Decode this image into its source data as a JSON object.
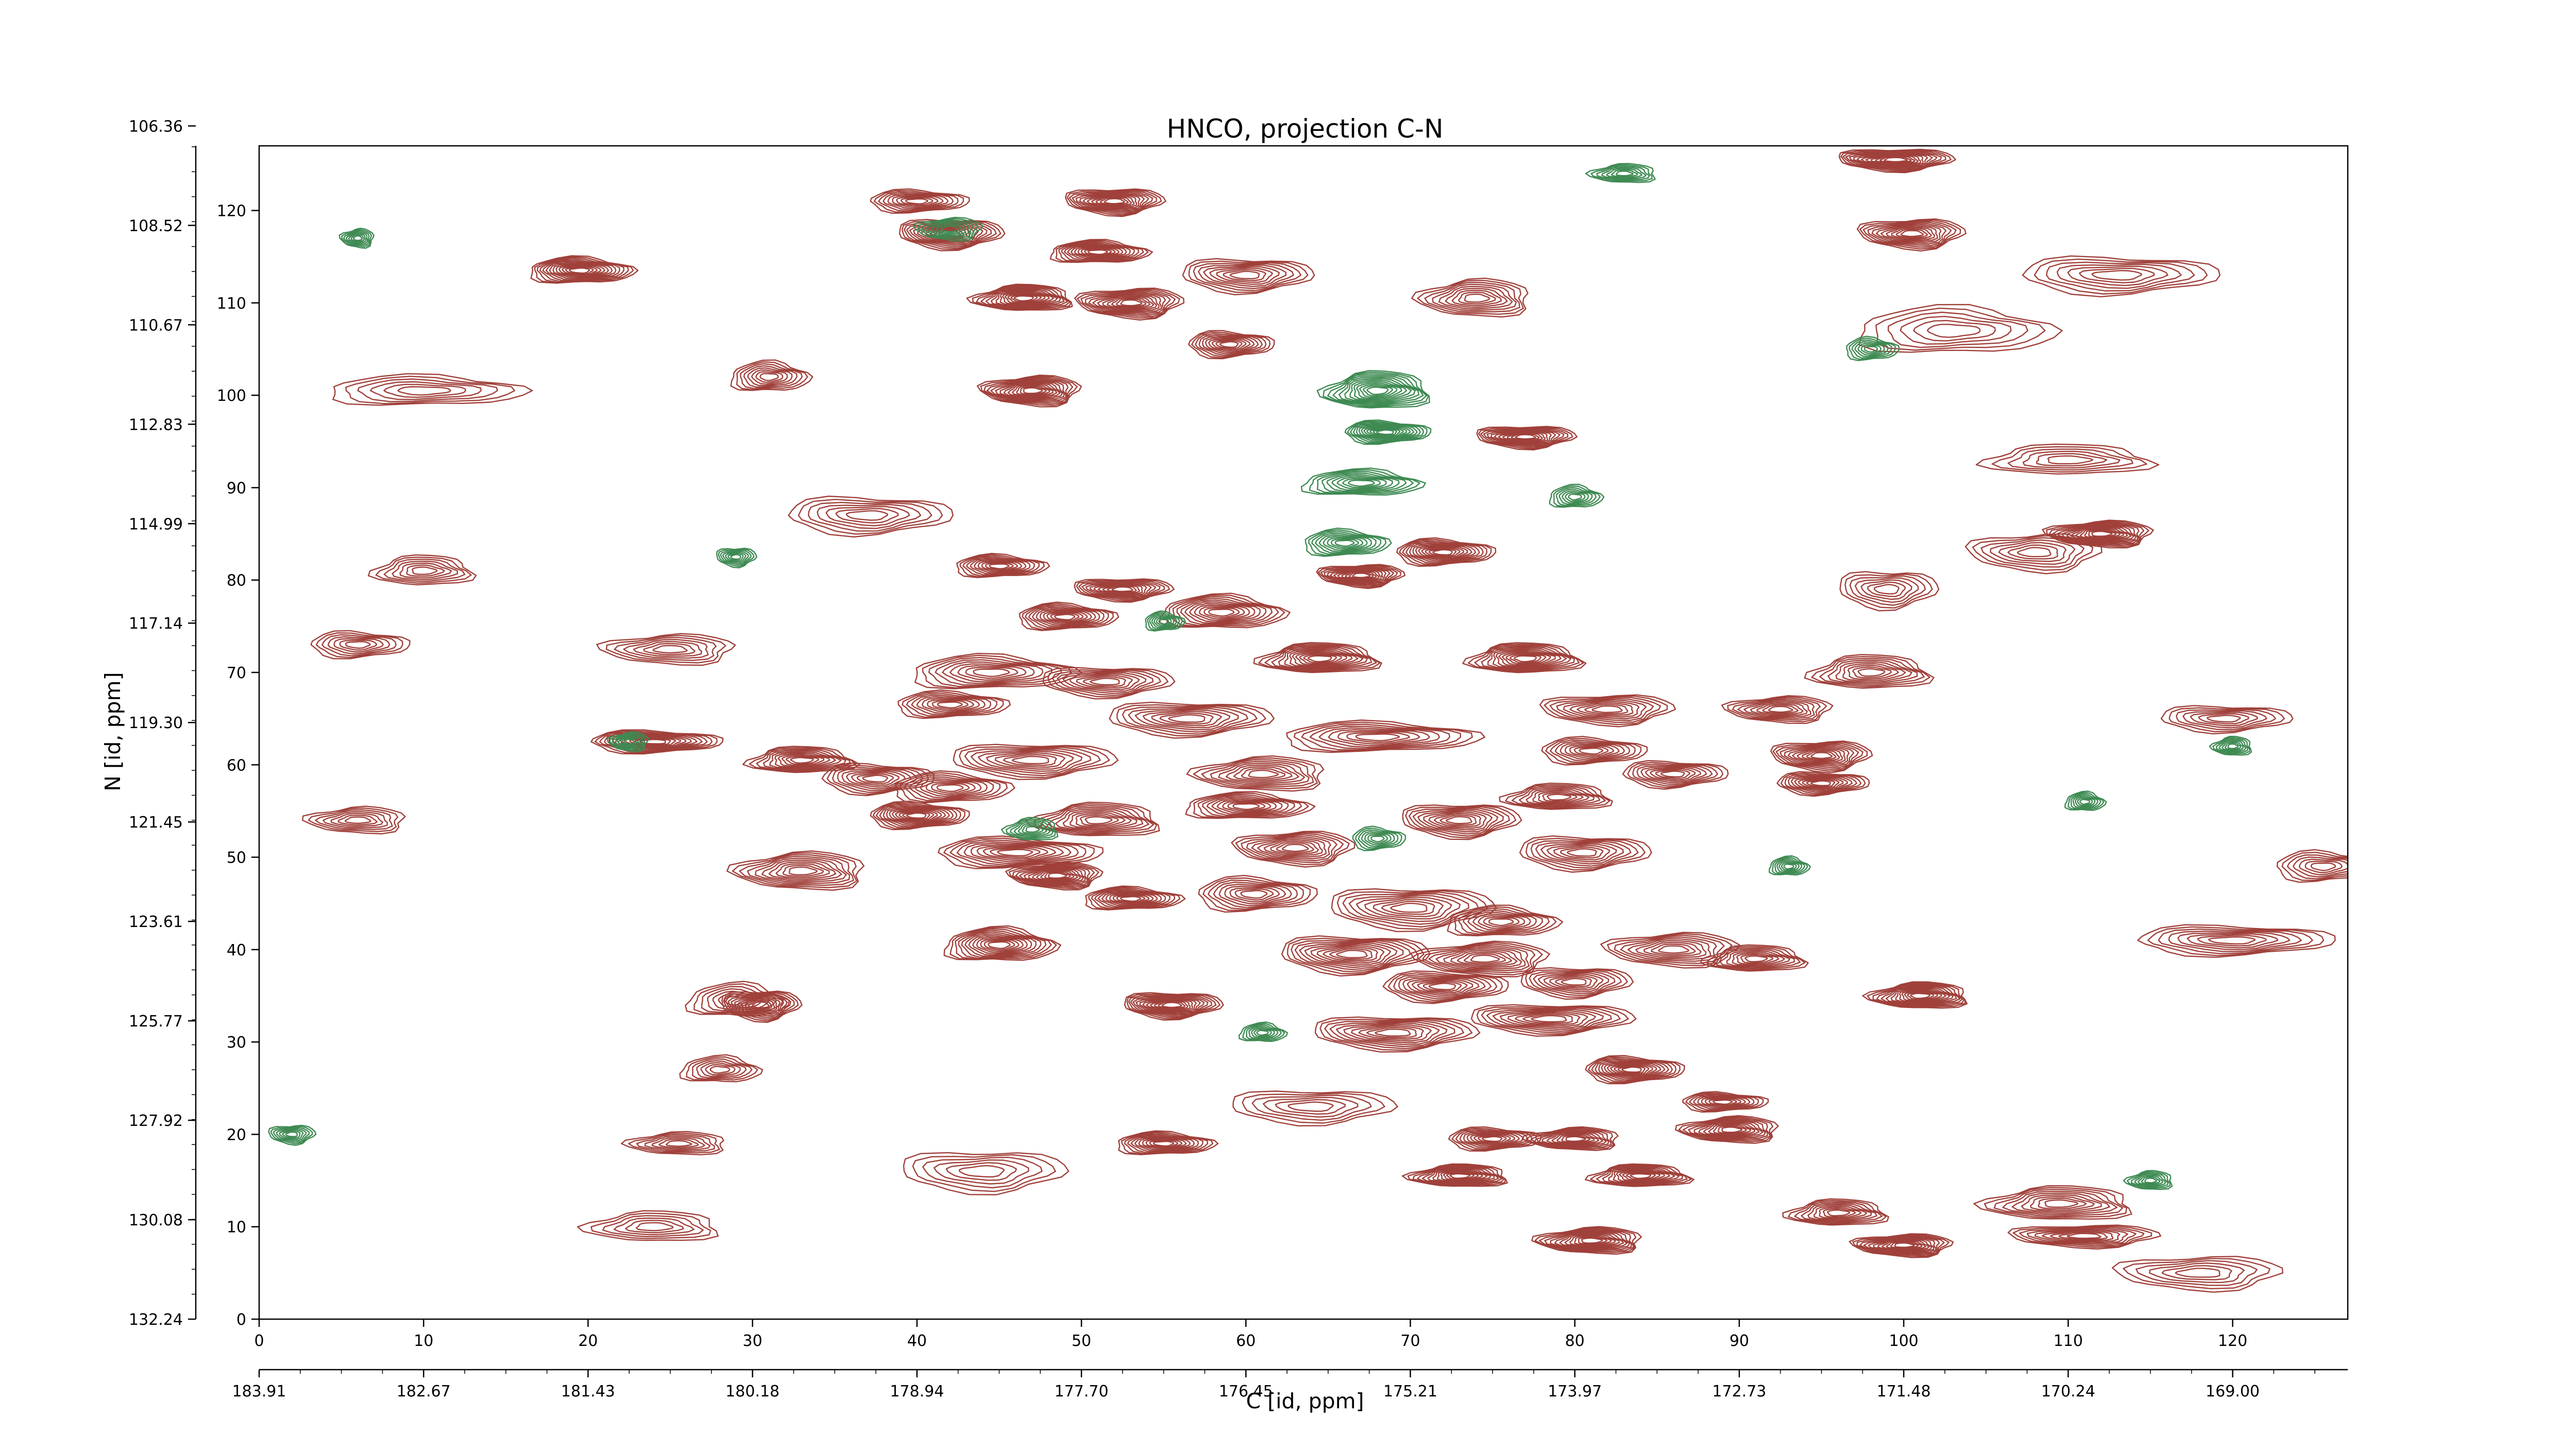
{
  "chart_data": {
    "type": "contour",
    "title": "HNCO, projection C-N",
    "xlabel": "C [id, ppm]",
    "ylabel": "N [id, ppm]",
    "xlim": [
      0,
      127
    ],
    "ylim": [
      0,
      127
    ],
    "grid": false,
    "legend": "none",
    "colors": {
      "positive": "#a0403a",
      "negative": "#3e8a52"
    },
    "x_ticks": [
      0,
      10,
      20,
      30,
      40,
      50,
      60,
      70,
      80,
      90,
      100,
      110,
      120
    ],
    "x_tick_labels": [
      "0",
      "10",
      "20",
      "30",
      "40",
      "50",
      "60",
      "70",
      "80",
      "90",
      "100",
      "110",
      "120"
    ],
    "y_ticks": [
      0,
      10,
      20,
      30,
      40,
      50,
      60,
      70,
      80,
      90,
      100,
      110,
      120
    ],
    "y_tick_labels": [
      "0",
      "10",
      "20",
      "30",
      "40",
      "50",
      "60",
      "70",
      "80",
      "90",
      "100",
      "110",
      "120"
    ],
    "ppm_x_ticks": [
      0,
      10,
      20,
      30,
      40,
      50,
      60,
      70,
      80,
      90,
      100,
      110,
      120
    ],
    "ppm_x_labels": [
      "183.91",
      "182.67",
      "181.43",
      "180.18",
      "178.94",
      "177.70",
      "176.45",
      "175.21",
      "173.97",
      "172.73",
      "171.48",
      "170.24",
      "169.00"
    ],
    "ppm_y_ticks": [
      0,
      12.7,
      25.4,
      38.1,
      50.8,
      63.5,
      76.2,
      88.9,
      101.6,
      114.3,
      127
    ],
    "ppm_y_labels": [
      "132.24",
      "130.08",
      "127.92",
      "125.77",
      "123.61",
      "121.45",
      "119.30",
      "117.14",
      "114.99",
      "112.83",
      "110.67"
    ],
    "ppm_y_labels_top": [
      "108.52",
      "106.36"
    ],
    "peaks": [
      {
        "x": 99.5,
        "y": 125.5,
        "w": 3.5,
        "h": 1.2,
        "s": 2.4
      },
      {
        "x": 100.5,
        "y": 117.5,
        "w": 3.2,
        "h": 1.6,
        "s": 2.0
      },
      {
        "x": 19.5,
        "y": 113.5,
        "w": 3.2,
        "h": 1.4,
        "s": 2.4
      },
      {
        "x": 40.0,
        "y": 121.0,
        "w": 3.0,
        "h": 1.2,
        "s": 1.6
      },
      {
        "x": 42.0,
        "y": 117.5,
        "w": 3.2,
        "h": 1.6,
        "s": 2.2
      },
      {
        "x": 52.0,
        "y": 121.0,
        "w": 3.0,
        "h": 1.4,
        "s": 2.2
      },
      {
        "x": 51.0,
        "y": 115.5,
        "w": 3.0,
        "h": 1.2,
        "s": 2.2
      },
      {
        "x": 46.5,
        "y": 110.5,
        "w": 3.0,
        "h": 1.4,
        "s": 2.4
      },
      {
        "x": 53.0,
        "y": 110.0,
        "w": 3.2,
        "h": 1.6,
        "s": 2.2
      },
      {
        "x": 60.0,
        "y": 113.0,
        "w": 4.0,
        "h": 1.8,
        "s": 1.6
      },
      {
        "x": 59.0,
        "y": 105.5,
        "w": 2.6,
        "h": 1.4,
        "s": 1.8
      },
      {
        "x": 74.0,
        "y": 110.5,
        "w": 3.4,
        "h": 2.0,
        "s": 1.6
      },
      {
        "x": 47.0,
        "y": 100.5,
        "w": 3.0,
        "h": 1.6,
        "s": 2.4
      },
      {
        "x": 31.0,
        "y": 102.0,
        "w": 2.4,
        "h": 1.6,
        "s": 1.2
      },
      {
        "x": 77.0,
        "y": 95.5,
        "w": 3.0,
        "h": 1.2,
        "s": 2.2
      },
      {
        "x": 72.0,
        "y": 83.0,
        "w": 3.0,
        "h": 1.4,
        "s": 2.2
      },
      {
        "x": 112.0,
        "y": 85.0,
        "w": 3.2,
        "h": 1.4,
        "s": 2.4
      },
      {
        "x": 45.0,
        "y": 81.5,
        "w": 2.8,
        "h": 1.2,
        "s": 1.8
      },
      {
        "x": 67.0,
        "y": 80.5,
        "w": 2.6,
        "h": 1.2,
        "s": 2.2
      },
      {
        "x": 52.5,
        "y": 79.0,
        "w": 3.0,
        "h": 1.2,
        "s": 2.0
      },
      {
        "x": 49.0,
        "y": 76.0,
        "w": 3.0,
        "h": 1.4,
        "s": 2.0
      },
      {
        "x": 58.5,
        "y": 76.5,
        "w": 3.8,
        "h": 1.8,
        "s": 2.0
      },
      {
        "x": 64.5,
        "y": 71.5,
        "w": 3.6,
        "h": 1.6,
        "s": 2.2
      },
      {
        "x": 77.0,
        "y": 71.5,
        "w": 3.4,
        "h": 1.6,
        "s": 2.2
      },
      {
        "x": 44.5,
        "y": 70.0,
        "w": 5.0,
        "h": 1.8,
        "s": 1.4
      },
      {
        "x": 51.5,
        "y": 69.0,
        "w": 4.0,
        "h": 1.6,
        "s": 1.4
      },
      {
        "x": 98.0,
        "y": 70.0,
        "w": 3.6,
        "h": 1.8,
        "s": 1.6
      },
      {
        "x": 42.0,
        "y": 66.5,
        "w": 3.4,
        "h": 1.4,
        "s": 1.4
      },
      {
        "x": 56.5,
        "y": 65.0,
        "w": 5.0,
        "h": 1.8,
        "s": 1.6
      },
      {
        "x": 82.0,
        "y": 66.0,
        "w": 4.0,
        "h": 1.6,
        "s": 1.6
      },
      {
        "x": 92.5,
        "y": 66.0,
        "w": 3.2,
        "h": 1.4,
        "s": 1.6
      },
      {
        "x": 24.0,
        "y": 62.5,
        "w": 4.0,
        "h": 1.2,
        "s": 2.2
      },
      {
        "x": 68.0,
        "y": 63.0,
        "w": 6.0,
        "h": 1.6,
        "s": 1.4
      },
      {
        "x": 33.0,
        "y": 60.5,
        "w": 3.2,
        "h": 1.4,
        "s": 1.8
      },
      {
        "x": 47.0,
        "y": 60.5,
        "w": 5.0,
        "h": 1.8,
        "s": 1.4
      },
      {
        "x": 81.0,
        "y": 61.5,
        "w": 3.2,
        "h": 1.4,
        "s": 1.6
      },
      {
        "x": 95.0,
        "y": 61.0,
        "w": 3.0,
        "h": 1.6,
        "s": 2.0
      },
      {
        "x": 37.5,
        "y": 58.5,
        "w": 3.4,
        "h": 1.6,
        "s": 1.4
      },
      {
        "x": 42.0,
        "y": 57.5,
        "w": 3.6,
        "h": 1.6,
        "s": 1.6
      },
      {
        "x": 61.0,
        "y": 59.0,
        "w": 4.0,
        "h": 1.8,
        "s": 1.6
      },
      {
        "x": 86.0,
        "y": 59.0,
        "w": 3.2,
        "h": 1.4,
        "s": 1.6
      },
      {
        "x": 95.0,
        "y": 58.0,
        "w": 2.8,
        "h": 1.2,
        "s": 1.8
      },
      {
        "x": 60.0,
        "y": 55.5,
        "w": 3.8,
        "h": 1.4,
        "s": 1.8
      },
      {
        "x": 79.0,
        "y": 56.5,
        "w": 3.2,
        "h": 1.4,
        "s": 1.6
      },
      {
        "x": 40.0,
        "y": 54.5,
        "w": 3.0,
        "h": 1.4,
        "s": 2.2
      },
      {
        "x": 51.0,
        "y": 54.0,
        "w": 3.8,
        "h": 1.8,
        "s": 1.8
      },
      {
        "x": 73.0,
        "y": 54.0,
        "w": 3.6,
        "h": 1.8,
        "s": 1.8
      },
      {
        "x": 46.0,
        "y": 50.5,
        "w": 5.0,
        "h": 1.6,
        "s": 1.8
      },
      {
        "x": 63.0,
        "y": 51.0,
        "w": 3.6,
        "h": 1.8,
        "s": 1.8
      },
      {
        "x": 80.5,
        "y": 50.5,
        "w": 4.0,
        "h": 1.8,
        "s": 1.6
      },
      {
        "x": 33.0,
        "y": 48.5,
        "w": 4.0,
        "h": 2.0,
        "s": 1.8
      },
      {
        "x": 48.5,
        "y": 48.0,
        "w": 2.8,
        "h": 1.4,
        "s": 2.2
      },
      {
        "x": 53.0,
        "y": 45.5,
        "w": 3.0,
        "h": 1.2,
        "s": 2.0
      },
      {
        "x": 60.5,
        "y": 46.0,
        "w": 3.6,
        "h": 1.8,
        "s": 1.6
      },
      {
        "x": 70.0,
        "y": 44.5,
        "w": 5.0,
        "h": 2.2,
        "s": 1.4
      },
      {
        "x": 75.5,
        "y": 43.0,
        "w": 3.4,
        "h": 1.6,
        "s": 1.6
      },
      {
        "x": 45.0,
        "y": 40.5,
        "w": 3.4,
        "h": 1.8,
        "s": 2.2
      },
      {
        "x": 66.5,
        "y": 39.5,
        "w": 4.5,
        "h": 2.0,
        "s": 2.0
      },
      {
        "x": 74.5,
        "y": 39.0,
        "w": 4.0,
        "h": 1.8,
        "s": 1.8
      },
      {
        "x": 86.0,
        "y": 40.0,
        "w": 4.0,
        "h": 1.8,
        "s": 1.6
      },
      {
        "x": 91.0,
        "y": 39.0,
        "w": 3.0,
        "h": 1.4,
        "s": 1.6
      },
      {
        "x": 72.0,
        "y": 36.0,
        "w": 3.8,
        "h": 1.6,
        "s": 1.8
      },
      {
        "x": 80.0,
        "y": 36.5,
        "w": 3.4,
        "h": 1.6,
        "s": 1.6
      },
      {
        "x": 30.5,
        "y": 34.0,
        "w": 2.4,
        "h": 1.6,
        "s": 2.0
      },
      {
        "x": 55.5,
        "y": 34.0,
        "w": 3.0,
        "h": 1.4,
        "s": 2.4
      },
      {
        "x": 101.0,
        "y": 35.0,
        "w": 3.0,
        "h": 1.4,
        "s": 2.4
      },
      {
        "x": 69.0,
        "y": 31.0,
        "w": 5.0,
        "h": 1.8,
        "s": 1.8
      },
      {
        "x": 78.5,
        "y": 32.5,
        "w": 5.0,
        "h": 1.6,
        "s": 1.8
      },
      {
        "x": 83.5,
        "y": 27.0,
        "w": 3.0,
        "h": 1.4,
        "s": 2.2
      },
      {
        "x": 89.0,
        "y": 23.5,
        "w": 2.6,
        "h": 1.0,
        "s": 1.6
      },
      {
        "x": 89.5,
        "y": 20.5,
        "w": 3.0,
        "h": 1.4,
        "s": 2.0
      },
      {
        "x": 55.0,
        "y": 19.0,
        "w": 3.0,
        "h": 1.2,
        "s": 2.0
      },
      {
        "x": 75.0,
        "y": 19.5,
        "w": 2.8,
        "h": 1.2,
        "s": 1.8
      },
      {
        "x": 80.0,
        "y": 19.5,
        "w": 2.8,
        "h": 1.2,
        "s": 1.8
      },
      {
        "x": 73.0,
        "y": 15.5,
        "w": 3.0,
        "h": 1.2,
        "s": 2.2
      },
      {
        "x": 84.0,
        "y": 15.5,
        "w": 3.0,
        "h": 1.2,
        "s": 2.0
      },
      {
        "x": 96.0,
        "y": 11.5,
        "w": 3.0,
        "h": 1.4,
        "s": 1.6
      },
      {
        "x": 109.5,
        "y": 12.5,
        "w": 4.5,
        "h": 1.8,
        "s": 1.4
      },
      {
        "x": 81.0,
        "y": 8.5,
        "w": 3.2,
        "h": 1.4,
        "s": 2.2
      },
      {
        "x": 100.0,
        "y": 8.0,
        "w": 3.0,
        "h": 1.2,
        "s": 2.2
      },
      {
        "x": 111.0,
        "y": 9.0,
        "w": 4.5,
        "h": 1.2,
        "s": 1.4
      },
      {
        "x": 28.0,
        "y": 27.0,
        "w": 2.4,
        "h": 1.4,
        "s": 1.0
      },
      {
        "x": 120.0,
        "y": 41.0,
        "w": 6.0,
        "h": 1.6,
        "s": 1.2
      },
      {
        "x": 113.0,
        "y": 113.0,
        "w": 6.0,
        "h": 2.0,
        "s": 1.0
      },
      {
        "x": 125.5,
        "y": 49.0,
        "w": 3.0,
        "h": 1.6,
        "s": 1.0
      },
      {
        "x": 119.5,
        "y": 65.0,
        "w": 4.0,
        "h": 1.4,
        "s": 1.0
      },
      {
        "x": 25.0,
        "y": 72.5,
        "w": 4.0,
        "h": 1.6,
        "s": 1.0
      },
      {
        "x": 6.0,
        "y": 54.0,
        "w": 3.0,
        "h": 1.4,
        "s": 1.0
      },
      {
        "x": 6.0,
        "y": 73.0,
        "w": 3.0,
        "h": 1.4,
        "s": 1.0
      },
      {
        "x": 10.0,
        "y": 81.0,
        "w": 3.0,
        "h": 1.6,
        "s": 1.0
      },
      {
        "x": 29.0,
        "y": 34.5,
        "w": 3.0,
        "h": 1.8,
        "s": 1.0
      },
      {
        "x": 37.0,
        "y": 87.0,
        "w": 5.0,
        "h": 2.0,
        "s": 1.0
      },
      {
        "x": 108.0,
        "y": 83.0,
        "w": 4.0,
        "h": 2.0,
        "s": 1.0
      },
      {
        "x": 99.0,
        "y": 79.0,
        "w": 3.0,
        "h": 2.0,
        "s": 1.0
      },
      {
        "x": 103.0,
        "y": 107.0,
        "w": 6.0,
        "h": 2.5,
        "s": 0.8
      },
      {
        "x": 110.0,
        "y": 93.0,
        "w": 5.0,
        "h": 1.6,
        "s": 0.8
      },
      {
        "x": 64.0,
        "y": 23.0,
        "w": 5.0,
        "h": 1.8,
        "s": 0.8
      },
      {
        "x": 24.0,
        "y": 10.0,
        "w": 4.0,
        "h": 1.6,
        "s": 0.8
      },
      {
        "x": 118.0,
        "y": 5.0,
        "w": 5.0,
        "h": 1.8,
        "s": 0.8
      },
      {
        "x": 44.0,
        "y": 16.0,
        "w": 5.0,
        "h": 2.2,
        "s": 0.8
      },
      {
        "x": 10.0,
        "y": 100.5,
        "w": 6.0,
        "h": 1.6,
        "s": 0.8
      },
      {
        "x": 25.5,
        "y": 19.0,
        "w": 3.0,
        "h": 1.2,
        "s": 1.0
      }
    ],
    "neg_peaks": [
      {
        "x": 68.0,
        "y": 100.5,
        "w": 3.2,
        "h": 2.0,
        "s": 2.2
      },
      {
        "x": 68.5,
        "y": 96.0,
        "w": 2.6,
        "h": 1.2,
        "s": 2.2
      },
      {
        "x": 67.0,
        "y": 90.5,
        "w": 3.6,
        "h": 1.4,
        "s": 1.4
      },
      {
        "x": 66.0,
        "y": 84.0,
        "w": 2.6,
        "h": 1.4,
        "s": 1.6
      },
      {
        "x": 6.0,
        "y": 117.0,
        "w": 1.0,
        "h": 1.0,
        "s": 1.0
      },
      {
        "x": 22.5,
        "y": 62.5,
        "w": 1.2,
        "h": 1.0,
        "s": 1.0
      },
      {
        "x": 42.0,
        "y": 118.0,
        "w": 2.0,
        "h": 1.2,
        "s": 1.0
      },
      {
        "x": 47.0,
        "y": 53.0,
        "w": 1.6,
        "h": 1.2,
        "s": 1.0
      },
      {
        "x": 68.0,
        "y": 52.0,
        "w": 1.6,
        "h": 1.2,
        "s": 1.0
      },
      {
        "x": 83.0,
        "y": 124.0,
        "w": 2.0,
        "h": 1.0,
        "s": 1.0
      },
      {
        "x": 98.0,
        "y": 105.0,
        "w": 1.6,
        "h": 1.2,
        "s": 1.0
      },
      {
        "x": 111.0,
        "y": 56.0,
        "w": 1.2,
        "h": 1.0,
        "s": 1.0
      },
      {
        "x": 80.0,
        "y": 89.0,
        "w": 1.6,
        "h": 1.2,
        "s": 1.0
      },
      {
        "x": 61.0,
        "y": 31.0,
        "w": 1.4,
        "h": 1.0,
        "s": 1.0
      },
      {
        "x": 2.0,
        "y": 20.0,
        "w": 1.4,
        "h": 1.0,
        "s": 1.0
      },
      {
        "x": 115.0,
        "y": 15.0,
        "w": 1.4,
        "h": 1.0,
        "s": 1.0
      },
      {
        "x": 120.0,
        "y": 62.0,
        "w": 1.2,
        "h": 1.0,
        "s": 1.0
      },
      {
        "x": 55.0,
        "y": 75.5,
        "w": 1.2,
        "h": 1.0,
        "s": 1.0
      },
      {
        "x": 29.0,
        "y": 82.5,
        "w": 1.2,
        "h": 1.0,
        "s": 1.0
      },
      {
        "x": 93.0,
        "y": 49.0,
        "w": 1.2,
        "h": 1.0,
        "s": 1.0
      }
    ]
  }
}
